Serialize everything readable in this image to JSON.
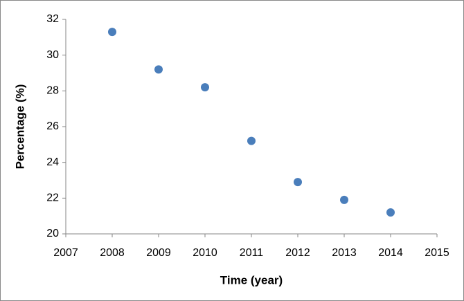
{
  "chart_data": {
    "type": "scatter",
    "x_label": "Time (year)",
    "y_label": "Percentage (%)",
    "series": [
      {
        "color": "#4a7ebb",
        "x": [
          2008,
          2009,
          2010,
          2011,
          2012,
          2013,
          2014
        ],
        "values": [
          31.3,
          29.2,
          28.2,
          25.2,
          22.9,
          21.9,
          21.2
        ]
      }
    ],
    "xlim": [
      2007,
      2015
    ],
    "xticks": [
      2007,
      2008,
      2009,
      2010,
      2011,
      2012,
      2013,
      2014,
      2015
    ],
    "ylim": [
      20,
      32
    ],
    "yticks": [
      20,
      22,
      24,
      26,
      28,
      30,
      32
    ],
    "grid": false
  }
}
